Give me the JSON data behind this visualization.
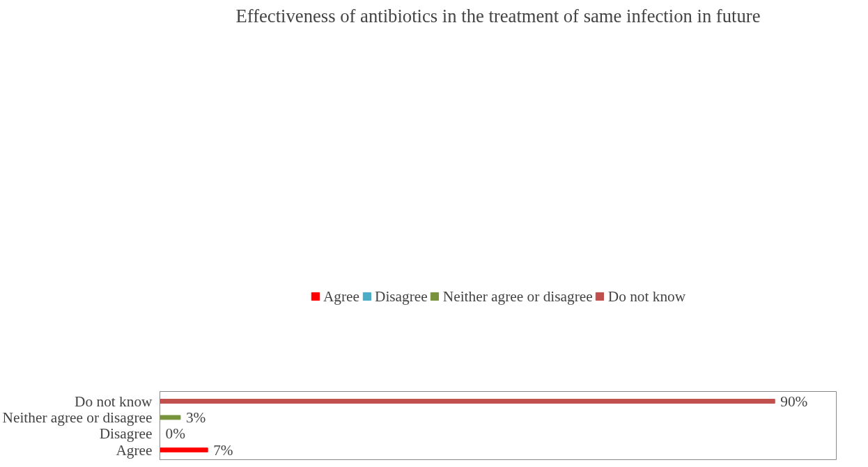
{
  "chart_data": {
    "type": "bar",
    "orientation": "horizontal",
    "title": "Effectiveness of antibiotics in the treatment of same infection in future",
    "categories": [
      "Do not know",
      "Neither agree or disagree",
      "Disagree",
      "Agree"
    ],
    "series": [
      {
        "name": "Agree",
        "color": "#ff0000",
        "values": [
          null,
          null,
          null,
          7
        ],
        "value_labels": [
          null,
          null,
          null,
          "7%"
        ]
      },
      {
        "name": "Disagree",
        "color": "#4bacc6",
        "values": [
          null,
          null,
          0,
          null
        ],
        "value_labels": [
          null,
          null,
          "0%",
          null
        ]
      },
      {
        "name": "Neither agree or disagree",
        "color": "#77933c",
        "values": [
          null,
          3,
          null,
          null
        ],
        "value_labels": [
          null,
          "3%",
          null,
          null
        ]
      },
      {
        "name": "Do not know",
        "color": "#c0504d",
        "values": [
          90,
          null,
          null,
          null
        ],
        "value_labels": [
          "90%",
          null,
          null,
          null
        ]
      }
    ],
    "legend": "top",
    "grid": false
  }
}
